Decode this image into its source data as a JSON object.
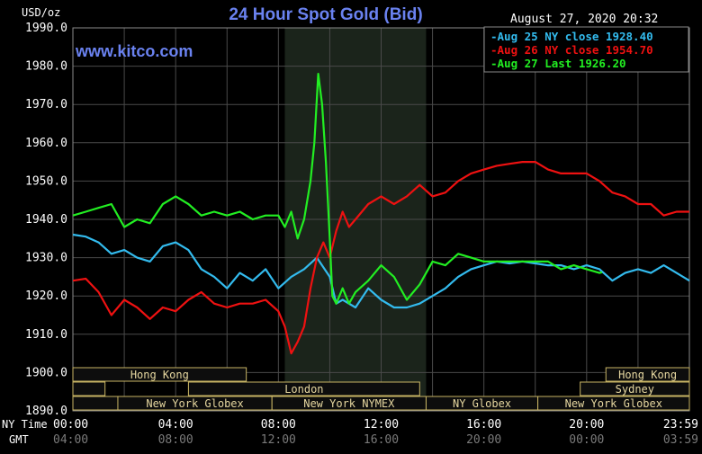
{
  "chart_data": {
    "type": "line",
    "title": "24 Hour Spot Gold (Bid)",
    "watermark": "www.kitco.com",
    "timestamp": "August 27, 2020 20:32",
    "y_unit_label": "USD/oz",
    "ylim": [
      1890,
      1990
    ],
    "y_ticks": [
      "1990.0",
      "1980.0",
      "1970.0",
      "1960.0",
      "1950.0",
      "1940.0",
      "1930.0",
      "1920.0",
      "1910.0",
      "1900.0",
      "1890.0"
    ],
    "x_label_ny": "NY Time",
    "x_label_gmt": "GMT",
    "x_ticks_ny": [
      "00:00",
      "04:00",
      "08:00",
      "12:00",
      "16:00",
      "20:00",
      "23:59"
    ],
    "x_ticks_gmt": [
      "04:00",
      "08:00",
      "12:00",
      "16:00",
      "20:00",
      "00:00",
      "03:59"
    ],
    "xlim_hours": [
      0,
      24
    ],
    "grid": true,
    "shaded_period_hours": [
      8.25,
      13.75
    ],
    "colors": {
      "background": "#000000",
      "grid": "#4a4a4a",
      "shade": "#1b241b",
      "title": "#6a82f0",
      "watermark": "#6a82f0",
      "axis_text": "#ffffff",
      "gmt_text": "#7a7a7a",
      "session_fill": "#0d0d0d",
      "session_border": "#c8b464",
      "session_text": "#e6d7a0"
    },
    "legend_position": "top-right",
    "series": [
      {
        "name": "Aug 25 NY close",
        "close_value": "1928.40",
        "color": "#33bbee",
        "points": [
          [
            0,
            1936
          ],
          [
            0.5,
            1935.5
          ],
          [
            1,
            1934
          ],
          [
            1.5,
            1931
          ],
          [
            2,
            1932
          ],
          [
            2.5,
            1930
          ],
          [
            3,
            1929
          ],
          [
            3.5,
            1933
          ],
          [
            4,
            1934
          ],
          [
            4.5,
            1932
          ],
          [
            5,
            1927
          ],
          [
            5.5,
            1925
          ],
          [
            6,
            1922
          ],
          [
            6.5,
            1926
          ],
          [
            7,
            1924
          ],
          [
            7.5,
            1927
          ],
          [
            8,
            1922
          ],
          [
            8.5,
            1925
          ],
          [
            9,
            1927
          ],
          [
            9.5,
            1930
          ],
          [
            10,
            1925
          ],
          [
            10.25,
            1918
          ],
          [
            10.5,
            1919
          ],
          [
            11,
            1917
          ],
          [
            11.5,
            1922
          ],
          [
            12,
            1919
          ],
          [
            12.5,
            1917
          ],
          [
            13,
            1917
          ],
          [
            13.5,
            1918
          ],
          [
            14,
            1920
          ],
          [
            14.5,
            1922
          ],
          [
            15,
            1925
          ],
          [
            15.5,
            1927
          ],
          [
            16,
            1928
          ],
          [
            16.5,
            1929
          ],
          [
            17,
            1928.5
          ],
          [
            17.5,
            1929
          ],
          [
            18,
            1928.5
          ],
          [
            18.5,
            1928
          ],
          [
            19,
            1928
          ],
          [
            19.5,
            1927
          ],
          [
            20,
            1928
          ],
          [
            20.5,
            1927
          ],
          [
            21,
            1924
          ],
          [
            21.5,
            1926
          ],
          [
            22,
            1927
          ],
          [
            22.5,
            1926
          ],
          [
            23,
            1928
          ],
          [
            23.5,
            1926
          ],
          [
            24,
            1924
          ]
        ]
      },
      {
        "name": "Aug 26 NY close",
        "close_value": "1954.70",
        "color": "#ee1111",
        "points": [
          [
            0,
            1924
          ],
          [
            0.5,
            1924.5
          ],
          [
            1,
            1921
          ],
          [
            1.5,
            1915
          ],
          [
            2,
            1919
          ],
          [
            2.5,
            1917
          ],
          [
            3,
            1914
          ],
          [
            3.5,
            1917
          ],
          [
            4,
            1916
          ],
          [
            4.5,
            1919
          ],
          [
            5,
            1921
          ],
          [
            5.5,
            1918
          ],
          [
            6,
            1917
          ],
          [
            6.5,
            1918
          ],
          [
            7,
            1918
          ],
          [
            7.5,
            1919
          ],
          [
            8,
            1916
          ],
          [
            8.25,
            1912
          ],
          [
            8.5,
            1905
          ],
          [
            8.75,
            1908
          ],
          [
            9,
            1912
          ],
          [
            9.25,
            1922
          ],
          [
            9.5,
            1930
          ],
          [
            9.75,
            1934
          ],
          [
            10,
            1930
          ],
          [
            10.25,
            1937
          ],
          [
            10.5,
            1942
          ],
          [
            10.75,
            1938
          ],
          [
            11,
            1940
          ],
          [
            11.5,
            1944
          ],
          [
            12,
            1946
          ],
          [
            12.5,
            1944
          ],
          [
            13,
            1946
          ],
          [
            13.5,
            1949
          ],
          [
            14,
            1946
          ],
          [
            14.5,
            1947
          ],
          [
            15,
            1950
          ],
          [
            15.5,
            1952
          ],
          [
            16,
            1953
          ],
          [
            16.5,
            1954
          ],
          [
            17,
            1954.5
          ],
          [
            17.5,
            1955
          ],
          [
            18,
            1955
          ],
          [
            18.5,
            1953
          ],
          [
            19,
            1952
          ],
          [
            19.5,
            1952
          ],
          [
            20,
            1952
          ],
          [
            20.5,
            1950
          ],
          [
            21,
            1947
          ],
          [
            21.5,
            1946
          ],
          [
            22,
            1944
          ],
          [
            22.5,
            1944
          ],
          [
            23,
            1941
          ],
          [
            23.5,
            1942
          ],
          [
            24,
            1942
          ]
        ]
      },
      {
        "name": "Aug 27 Last",
        "close_value": "1926.20",
        "color": "#22ee22",
        "points": [
          [
            0,
            1941
          ],
          [
            0.5,
            1942
          ],
          [
            1,
            1943
          ],
          [
            1.5,
            1944
          ],
          [
            2,
            1938
          ],
          [
            2.5,
            1940
          ],
          [
            3,
            1939
          ],
          [
            3.5,
            1944
          ],
          [
            4,
            1946
          ],
          [
            4.5,
            1944
          ],
          [
            5,
            1941
          ],
          [
            5.5,
            1942
          ],
          [
            6,
            1941
          ],
          [
            6.5,
            1942
          ],
          [
            7,
            1940
          ],
          [
            7.5,
            1941
          ],
          [
            8,
            1941
          ],
          [
            8.25,
            1938
          ],
          [
            8.5,
            1942
          ],
          [
            8.75,
            1935
          ],
          [
            9,
            1940
          ],
          [
            9.25,
            1950
          ],
          [
            9.4,
            1960
          ],
          [
            9.55,
            1978
          ],
          [
            9.7,
            1970
          ],
          [
            9.85,
            1955
          ],
          [
            10,
            1935
          ],
          [
            10.1,
            1920
          ],
          [
            10.25,
            1918
          ],
          [
            10.5,
            1922
          ],
          [
            10.75,
            1918
          ],
          [
            11,
            1921
          ],
          [
            11.5,
            1924
          ],
          [
            12,
            1928
          ],
          [
            12.5,
            1925
          ],
          [
            13,
            1919
          ],
          [
            13.5,
            1923
          ],
          [
            14,
            1929
          ],
          [
            14.5,
            1928
          ],
          [
            15,
            1931
          ],
          [
            15.5,
            1930
          ],
          [
            16,
            1929
          ],
          [
            16.5,
            1929
          ],
          [
            17,
            1929
          ],
          [
            17.5,
            1929
          ],
          [
            18,
            1929
          ],
          [
            18.5,
            1929
          ],
          [
            19,
            1927
          ],
          [
            19.5,
            1928
          ],
          [
            20,
            1927
          ],
          [
            20.5,
            1926
          ],
          [
            20.6,
            1926.2
          ]
        ]
      }
    ],
    "sessions": [
      {
        "label": "Hong Kong",
        "row": 0,
        "start": 0,
        "end": 6.75
      },
      {
        "label": "",
        "row": 1,
        "start": 0,
        "end": 1.25
      },
      {
        "label": "",
        "row": 1,
        "start": 4.5,
        "end": 7.75
      },
      {
        "label": "London",
        "row": 1,
        "start": 4.5,
        "end": 13.5
      },
      {
        "label": "",
        "row": 2,
        "start": 0,
        "end": 2.25
      },
      {
        "label": "New York Globex",
        "row": 3,
        "start": 1.75,
        "end": 7.75
      },
      {
        "label": "New York NYMEX",
        "row": 3,
        "start": 7.75,
        "end": 13.75
      },
      {
        "label": "NY Globex",
        "row": 3,
        "start": 13.75,
        "end": 18.1
      },
      {
        "label": "Hong Kong",
        "row": 0,
        "start": 20.75,
        "end": 24
      },
      {
        "label": "Sydney",
        "row": 1,
        "start": 19.75,
        "end": 24
      },
      {
        "label": "",
        "row": 2,
        "start": 18.8,
        "end": 24
      },
      {
        "label": "New York Globex",
        "row": 3,
        "start": 18.1,
        "end": 24
      }
    ]
  }
}
